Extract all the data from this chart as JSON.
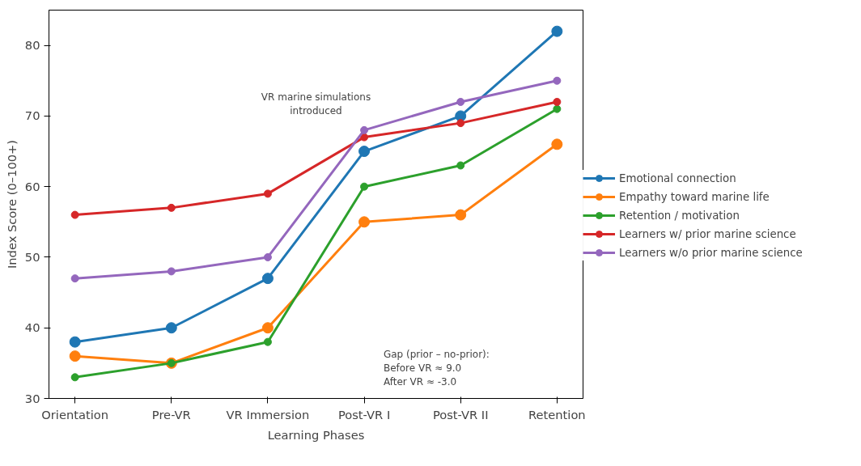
{
  "chart_data": {
    "type": "line",
    "xlabel": "Learning Phases",
    "ylabel": "Index Score (0–100+)",
    "categories": [
      "Orientation",
      "Pre-VR",
      "VR Immersion",
      "Post-VR I",
      "Post-VR II",
      "Retention"
    ],
    "series": [
      {
        "name": "Emotional connection",
        "color": "#1f77b4",
        "values": [
          38,
          40,
          47,
          65,
          70,
          82
        ]
      },
      {
        "name": "Empathy toward marine life",
        "color": "#ff7f0e",
        "values": [
          36,
          35,
          40,
          55,
          56,
          66
        ]
      },
      {
        "name": "Retention / motivation",
        "color": "#2ca02c",
        "values": [
          33,
          35,
          38,
          60,
          63,
          71
        ]
      },
      {
        "name": "Learners w/ prior marine science",
        "color": "#d62728",
        "values": [
          56,
          57,
          59,
          67,
          69,
          72
        ]
      },
      {
        "name": "Learners w/o prior marine science",
        "color": "#9467bd",
        "values": [
          47,
          48,
          50,
          68,
          72,
          75
        ]
      }
    ],
    "ylim": [
      30,
      85
    ],
    "yticks": [
      30,
      40,
      50,
      60,
      70,
      80
    ],
    "grid": false,
    "legend": "right",
    "marker": "circle",
    "line_style": "solid",
    "annotations": [
      "VR marine simulations\nintroduced",
      "Gap (prior – no-prior):\nBefore VR ≈ 9.0\nAfter VR ≈ -3.0"
    ]
  }
}
